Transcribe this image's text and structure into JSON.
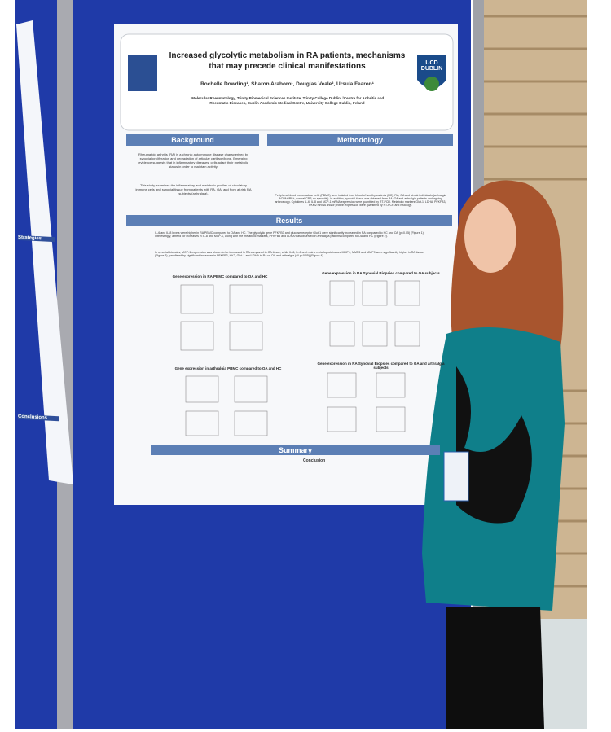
{
  "left_poster": {
    "headings": [
      "Strategies",
      "Conclusions"
    ]
  },
  "poster": {
    "title": "Increased glycolytic metabolism in RA patients, mechanisms that may precede clinical manifestations",
    "authors": "Rochelle Dowding¹, Sharon Araboro¹, Douglas Veale², Ursula Fearon¹",
    "affiliations": "¹Molecular Rheumatology, Trinity Biomedical Sciences Institute, Trinity College Dublin. ²Centre for Arthritis and Rheumatic Diseases, Dublin Academic Medical Centre, University College Dublin, Ireland",
    "logo": "UCD DUBLIN",
    "sections": {
      "background": {
        "heading": "Background",
        "paragraphs": [
          "Rheumatoid arthritis (RA) is a chronic autoimmune disease characterised by synovial proliferation and degradation of articular cartilage/bone. Emerging evidence suggests that in inflammatory diseases, cells adapt their metabolic status in order to maintain activity.",
          "This study examines the inflammatory and metabolic profiles of circulatory immune cells and synovial tissue from patients with RA, OA, and from at-risk RA subjects (arthralgia)."
        ]
      },
      "methodology": {
        "heading": "Methodology",
        "text": "Peripheral blood mononuclear cells (PBMC) were isolated from blood of healthy controls (HC), RA, OA and at-risk individuals (arthralgia ACPA+/RF+, normal CRP, no synovitis). In addition, synovial tissue was obtained from RA, OA and arthralgia patients undergoing arthroscopy. Cytokines IL-6, IL-8 and MCP-1 mRNA expression were quantified by RT-PCR. Metabolic markers Glut-1, LDHA, PFKFB3, PKM2 mRNA and/or protein expression were quantified by RT-PCR and histology."
      },
      "results": {
        "heading": "Results",
        "paragraphs": [
          "IL-6 and IL-8 levels were higher in RA PBMC compared to OA and HC. The glycolytic gene PFKFB3 and glucose receptor Glut-1 were significantly increased in RA compared to HC and OA (p<0.05) (Figure 1). Interestingly, a trend for increases in IL-8 and MCP-1, along with the metabolic markers, PFKFB3 and LDHA was observed in arthralgia patients compared to OA and HC (Figure 2).",
          "In synovial biopsies, MCP-1 expression was shown to be increased in RA compared to OA tissue, while IL-6, IL-8 and matrix metalloproteinases MMP1, MMP3 and MMP9 were significantly higher in RA tissue (Figure 3), paralleled by significant increases in PFKFB3, HK2, Glut-1 and LDHA in RA vs OA and arthralgia (all p<0.05) (Figure 4)."
        ],
        "figures": [
          "Gene expression in RA PBMC compared to OA and HC",
          "Gene expression in RA Synovial Biopsies compared to OA subjects",
          "Gene expression in arthralgia PBMC compared to OA and HC",
          "Gene expression in RA Synovial Biopsies compared to OA and arthralgia subjects"
        ]
      },
      "summary": {
        "heading": "Summary",
        "conclusion": "Conclusion"
      }
    }
  }
}
